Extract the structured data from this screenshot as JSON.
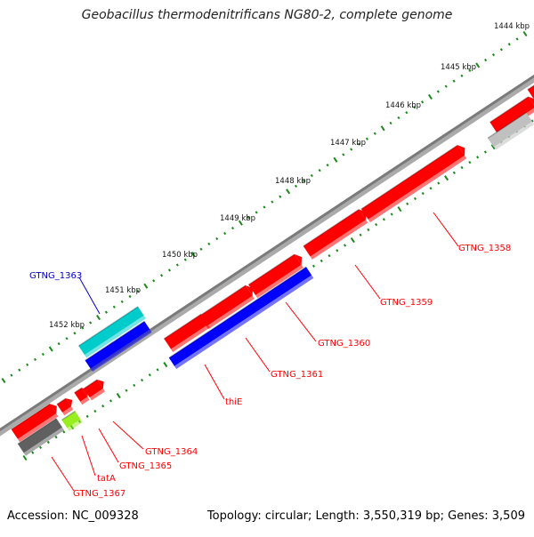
{
  "title": "Geobacillus thermodenitrificans NG80-2, complete genome",
  "footer": {
    "accession": "Accession: NC_009328",
    "summary": "Topology: circular; Length: 3,550,319 bp; Genes: 3,509"
  },
  "ticks": [
    "1444 kbp",
    "1445 kbp",
    "1446 kbp",
    "1447 kbp",
    "1448 kbp",
    "1449 kbp",
    "1450 kbp",
    "1451 kbp",
    "1452 kbp"
  ],
  "genes": [
    {
      "label": "GTNG_1358",
      "color": "#ff0000",
      "strand": "+"
    },
    {
      "label": "GTNG_1359",
      "color": "#ff0000",
      "strand": "+"
    },
    {
      "label": "GTNG_1360",
      "color": "#ff0000",
      "strand": "+"
    },
    {
      "label": "GTNG_1361",
      "color": "#ff0000",
      "strand": "+"
    },
    {
      "label": "thiE",
      "color": "#ff0000",
      "strand": "+"
    },
    {
      "label": "GTNG_1363",
      "color": "#1e1ef0",
      "strand": "+"
    },
    {
      "label": "GTNG_1364",
      "color": "#ff0000",
      "strand": "+"
    },
    {
      "label": "GTNG_1365",
      "color": "#ff0000",
      "strand": "+"
    },
    {
      "label": "tatA",
      "color": "#ff0000",
      "strand": "+"
    },
    {
      "label": "GTNG_1367",
      "color": "#ff0000",
      "strand": "+"
    }
  ],
  "colors": {
    "cds_forward": "#ff0000",
    "cds_reverse": "#0000ff",
    "feature_cyan": "#00cccc",
    "feature_gray": "#606060",
    "feature_lightgray": "#c0c0c0",
    "feature_lime": "#99ee22",
    "backbone": "#808080",
    "tick_marks": "#1a8a1a",
    "blue_label": "#0000cc"
  }
}
